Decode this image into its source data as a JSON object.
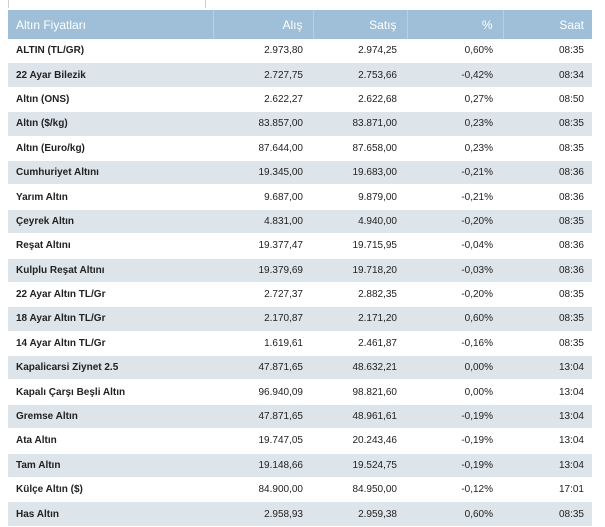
{
  "table": {
    "headers": {
      "name": "Altın Fiyatları",
      "buy": "Alış",
      "sell": "Satış",
      "change": "%",
      "time": "Saat"
    },
    "rows": [
      {
        "name": "ALTIN (TL/GR)",
        "buy": "2.973,80",
        "sell": "2.974,25",
        "change": "0,60%",
        "time": "08:35"
      },
      {
        "name": "22 Ayar Bilezik",
        "buy": "2.727,75",
        "sell": "2.753,66",
        "change": "-0,42%",
        "time": "08:34"
      },
      {
        "name": "Altın (ONS)",
        "buy": "2.622,27",
        "sell": "2.622,68",
        "change": "0,27%",
        "time": "08:50"
      },
      {
        "name": "Altın ($/kg)",
        "buy": "83.857,00",
        "sell": "83.871,00",
        "change": "0,23%",
        "time": "08:35"
      },
      {
        "name": "Altın (Euro/kg)",
        "buy": "87.644,00",
        "sell": "87.658,00",
        "change": "0,23%",
        "time": "08:35"
      },
      {
        "name": "Cumhuriyet Altını",
        "buy": "19.345,00",
        "sell": "19.683,00",
        "change": "-0,21%",
        "time": "08:36"
      },
      {
        "name": "Yarım Altın",
        "buy": "9.687,00",
        "sell": "9.879,00",
        "change": "-0,21%",
        "time": "08:36"
      },
      {
        "name": "Çeyrek Altın",
        "buy": "4.831,00",
        "sell": "4.940,00",
        "change": "-0,20%",
        "time": "08:35"
      },
      {
        "name": "Reşat Altını",
        "buy": "19.377,47",
        "sell": "19.715,95",
        "change": "-0,04%",
        "time": "08:36"
      },
      {
        "name": "Kulplu Reşat Altını",
        "buy": "19.379,69",
        "sell": "19.718,20",
        "change": "-0,03%",
        "time": "08:36"
      },
      {
        "name": "22 Ayar Altın TL/Gr",
        "buy": "2.727,37",
        "sell": "2.882,35",
        "change": "-0,20%",
        "time": "08:35"
      },
      {
        "name": "18 Ayar Altın TL/Gr",
        "buy": "2.170,87",
        "sell": "2.171,20",
        "change": "0,60%",
        "time": "08:35"
      },
      {
        "name": "14 Ayar Altın TL/Gr",
        "buy": "1.619,61",
        "sell": "2.461,87",
        "change": "-0,16%",
        "time": "08:35"
      },
      {
        "name": "Kapalicarsi Ziynet 2.5",
        "buy": "47.871,65",
        "sell": "48.632,21",
        "change": "0,00%",
        "time": "13:04"
      },
      {
        "name": "Kapalı Çarşı Beşli Altın",
        "buy": "96.940,09",
        "sell": "98.821,60",
        "change": "0,00%",
        "time": "13:04"
      },
      {
        "name": "Gremse Altın",
        "buy": "47.871,65",
        "sell": "48.961,61",
        "change": "-0,19%",
        "time": "13:04"
      },
      {
        "name": "Ata Altın",
        "buy": "19.747,05",
        "sell": "20.243,46",
        "change": "-0,19%",
        "time": "13:04"
      },
      {
        "name": "Tam Altın",
        "buy": "19.148,66",
        "sell": "19.524,75",
        "change": "-0,19%",
        "time": "13:04"
      },
      {
        "name": "Külçe Altın ($)",
        "buy": "84.900,00",
        "sell": "84.950,00",
        "change": "-0,12%",
        "time": "17:01"
      },
      {
        "name": "Has Altın",
        "buy": "2.958,93",
        "sell": "2.959,38",
        "change": "0,60%",
        "time": "08:35"
      }
    ]
  },
  "colors": {
    "header_bg": "#9fbfd8",
    "header_text": "#ffffff",
    "stripe": "#dde4ea"
  }
}
